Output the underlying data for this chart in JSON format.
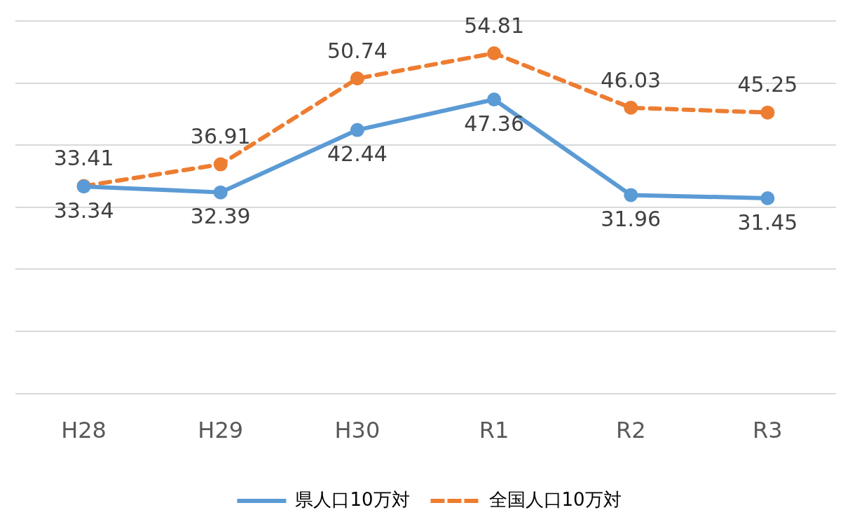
{
  "chart_data": {
    "type": "line",
    "categories": [
      "H28",
      "H29",
      "H30",
      "R1",
      "R2",
      "R3"
    ],
    "series": [
      {
        "name": "県人口10万対",
        "color": "#5b9bd5",
        "line_style": "solid",
        "values": [
          33.34,
          32.39,
          42.44,
          47.36,
          31.96,
          31.45
        ]
      },
      {
        "name": "全国人口10万対",
        "color": "#ed7d31",
        "line_style": "dashed",
        "values": [
          33.41,
          36.91,
          50.74,
          54.81,
          46.03,
          45.25
        ]
      }
    ],
    "ylim": [
      0,
      60
    ],
    "yticks": [
      {
        "value": 0,
        "label": null
      },
      {
        "value": 10,
        "label": null
      },
      {
        "value": 20,
        "label": null
      },
      {
        "value": 30,
        "label": null
      },
      {
        "value": 40,
        "label": null
      },
      {
        "value": 50,
        "label": null
      },
      {
        "value": 60,
        "label": null
      }
    ],
    "tick_labels": "x",
    "grid": "y",
    "legend": "bottom",
    "marker": "circle",
    "data_labels": true
  }
}
